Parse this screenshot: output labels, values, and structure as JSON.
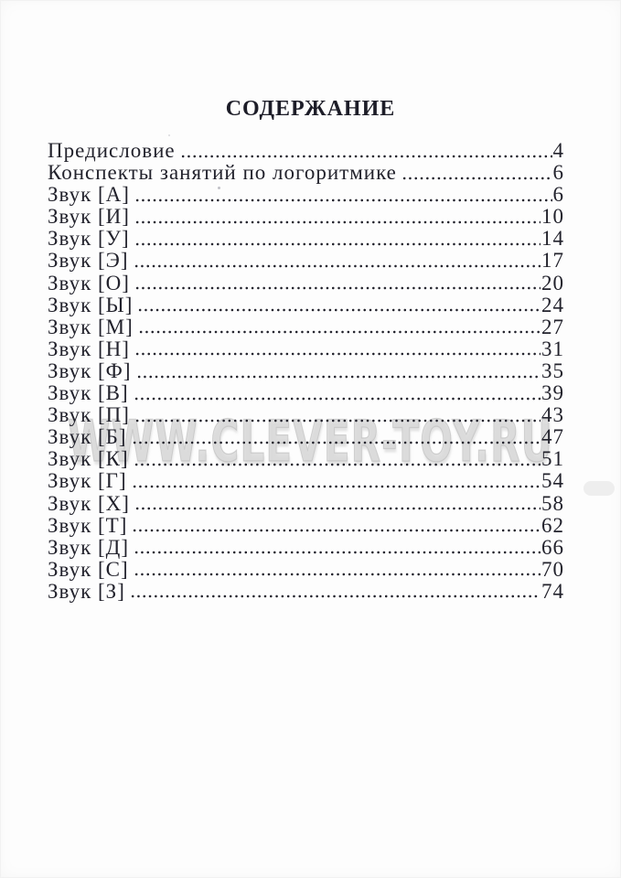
{
  "title": "СОДЕРЖАНИЕ",
  "watermark": "WWW.CLEVER-TOY.RU",
  "entries": [
    {
      "label": "Предисловие",
      "page": "4"
    },
    {
      "label": "Конспекты занятий по логоритмике",
      "page": "6"
    },
    {
      "label": "Звук [А]",
      "page": "6"
    },
    {
      "label": "Звук [И]",
      "page": "10"
    },
    {
      "label": "Звук [У]",
      "page": "14"
    },
    {
      "label": "Звук [Э]",
      "page": "17"
    },
    {
      "label": "Звук [О]",
      "page": "20"
    },
    {
      "label": "Звук [Ы]",
      "page": "24"
    },
    {
      "label": "Звук [М]",
      "page": "27"
    },
    {
      "label": "Звук [Н]",
      "page": "31"
    },
    {
      "label": "Звук [Ф]",
      "page": "35"
    },
    {
      "label": "Звук [В]",
      "page": "39"
    },
    {
      "label": "Звук [П]",
      "page": "43"
    },
    {
      "label": "Звук [Б]",
      "page": "47"
    },
    {
      "label": "Звук [К]",
      "page": "51"
    },
    {
      "label": "Звук [Г]",
      "page": "54"
    },
    {
      "label": "Звук [Х]",
      "page": "58"
    },
    {
      "label": "Звук [Т]",
      "page": "62"
    },
    {
      "label": "Звук [Д]",
      "page": "66"
    },
    {
      "label": "Звук [С]",
      "page": "70"
    },
    {
      "label": "Звук [З]",
      "page": "74"
    }
  ]
}
